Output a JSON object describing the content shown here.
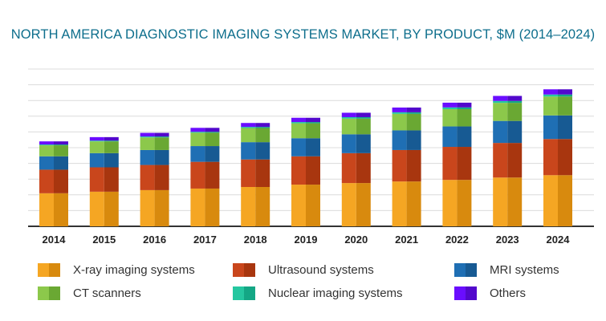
{
  "title": "NORTH AMERICA DIAGNOSTIC IMAGING SYSTEMS MARKET, BY PRODUCT, $M (2014–2024)",
  "chart_data": {
    "type": "bar",
    "stacked": true,
    "title": "NORTH AMERICA DIAGNOSTIC IMAGING SYSTEMS MARKET, BY PRODUCT, $M (2014–2024)",
    "xlabel": "",
    "ylabel": "",
    "categories": [
      "2014",
      "2015",
      "2016",
      "2017",
      "2018",
      "2019",
      "2020",
      "2021",
      "2022",
      "2023",
      "2024"
    ],
    "ylim": [
      0,
      10
    ],
    "grid": true,
    "legend_position": "bottom",
    "series": [
      {
        "name": "X-ray imaging systems",
        "color": "#f5a623",
        "shade": "#d88a0e",
        "values": [
          2.1,
          2.2,
          2.3,
          2.4,
          2.5,
          2.65,
          2.75,
          2.85,
          2.95,
          3.1,
          3.25
        ]
      },
      {
        "name": "Ultrasound systems",
        "color": "#c9461c",
        "shade": "#a8360f",
        "values": [
          1.5,
          1.55,
          1.6,
          1.7,
          1.75,
          1.8,
          1.9,
          2.0,
          2.1,
          2.2,
          2.3
        ]
      },
      {
        "name": "MRI systems",
        "color": "#1f6fb4",
        "shade": "#175a93",
        "values": [
          0.85,
          0.9,
          0.95,
          1.0,
          1.1,
          1.15,
          1.2,
          1.25,
          1.3,
          1.4,
          1.5
        ]
      },
      {
        "name": "CT scanners",
        "color": "#8cc84b",
        "shade": "#6aa833",
        "values": [
          0.7,
          0.75,
          0.8,
          0.85,
          0.9,
          0.95,
          1.0,
          1.05,
          1.1,
          1.15,
          1.2
        ]
      },
      {
        "name": "Nuclear imaging systems",
        "color": "#25c7a0",
        "shade": "#14a785",
        "values": [
          0.05,
          0.05,
          0.06,
          0.06,
          0.07,
          0.08,
          0.09,
          0.1,
          0.11,
          0.12,
          0.13
        ]
      },
      {
        "name": "Others",
        "color": "#6a0dff",
        "shade": "#5208cc",
        "values": [
          0.2,
          0.22,
          0.23,
          0.25,
          0.25,
          0.27,
          0.28,
          0.3,
          0.3,
          0.32,
          0.33
        ]
      }
    ]
  }
}
